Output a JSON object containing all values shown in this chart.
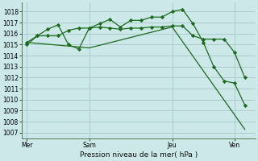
{
  "bg_color": "#cce8e8",
  "grid_color": "#aacccc",
  "line_color": "#1a6b1a",
  "marker_color": "#1a6b1a",
  "xlabel": "Pression niveau de la mer( hPa )",
  "ylim": [
    1006.5,
    1018.8
  ],
  "yticks": [
    1007,
    1008,
    1009,
    1010,
    1011,
    1012,
    1013,
    1014,
    1015,
    1016,
    1017,
    1018
  ],
  "xtick_labels": [
    "Mer",
    "Sam",
    "Jeu",
    "Ven"
  ],
  "xtick_positions": [
    0,
    6,
    14,
    20
  ],
  "vline_positions": [
    0,
    6,
    14,
    20
  ],
  "xlim": [
    -0.5,
    22
  ],
  "series1_x": [
    0,
    1,
    2,
    3,
    4,
    5,
    6,
    7,
    8,
    9,
    10,
    11,
    12,
    13,
    14,
    15,
    16,
    17,
    18,
    19,
    20,
    21
  ],
  "series1_y": [
    1015.0,
    1015.8,
    1015.8,
    1015.8,
    1016.3,
    1016.5,
    1016.5,
    1016.6,
    1016.5,
    1016.4,
    1016.5,
    1016.5,
    1016.6,
    1016.6,
    1016.7,
    1016.7,
    1015.8,
    1015.5,
    1015.5,
    1015.5,
    1014.3,
    1012.0
  ],
  "series2_x": [
    0,
    1,
    2,
    3,
    4,
    5,
    6,
    7,
    8,
    9,
    10,
    11,
    12,
    13,
    14,
    15,
    16,
    17,
    18,
    19,
    20,
    21
  ],
  "series2_y": [
    1015.2,
    1015.8,
    1016.4,
    1016.8,
    1015.0,
    1014.6,
    1016.5,
    1016.9,
    1017.3,
    1016.6,
    1017.2,
    1017.2,
    1017.5,
    1017.5,
    1018.0,
    1018.2,
    1016.9,
    1015.2,
    1013.0,
    1011.7,
    1011.5,
    1009.5
  ],
  "series3_x": [
    0,
    6,
    14,
    21
  ],
  "series3_y": [
    1015.2,
    1014.7,
    1016.6,
    1007.3
  ]
}
